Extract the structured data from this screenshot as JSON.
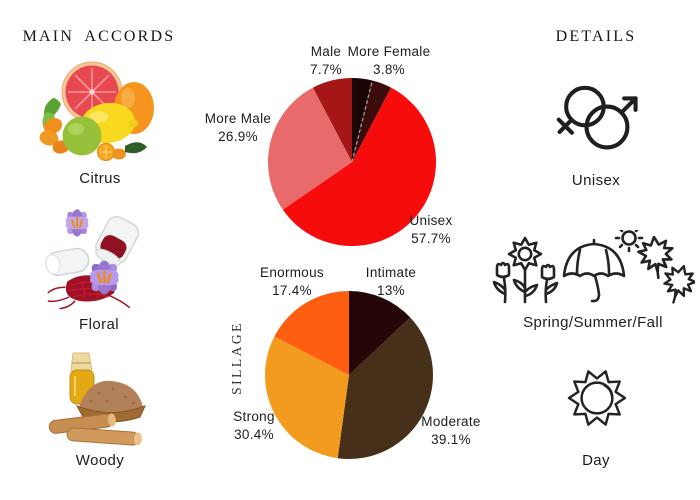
{
  "page": {
    "background": "#ffffff"
  },
  "left": {
    "header": "MAIN ACCORDS",
    "accords": [
      {
        "label": "Citrus",
        "image": "citrus-fruits-image"
      },
      {
        "label": "Floral",
        "image": "saffron-crocus-image"
      },
      {
        "label": "Woody",
        "image": "sandalwood-image"
      }
    ]
  },
  "right": {
    "header": "DETAILS",
    "items": [
      {
        "label": "Unisex",
        "icon": "unisex-gender-icon"
      },
      {
        "label": "Spring/Summer/Fall",
        "icon": "spring-summer-fall-icons"
      },
      {
        "label": "Day",
        "icon": "day-sun-icon"
      }
    ]
  },
  "chart_data": [
    {
      "type": "pie",
      "name": "gender-audience-pie",
      "start": "12-oclock",
      "direction": "clockwise",
      "legend": "none",
      "slices": [
        {
          "label": "",
          "pct": 3.9,
          "pct_text": "",
          "color": "#1c0505",
          "label_visible": false
        },
        {
          "label": "More Female",
          "pct": 3.8,
          "pct_text": "3.8%",
          "color": "#3c0c0c",
          "label_visible": true
        },
        {
          "label": "Unisex",
          "pct": 57.7,
          "pct_text": "57.7%",
          "color": "#f70c0c",
          "label_visible": true
        },
        {
          "label": "More Male",
          "pct": 26.9,
          "pct_text": "26.9%",
          "color": "#e96a6a",
          "label_visible": true
        },
        {
          "label": "Male",
          "pct": 7.7,
          "pct_text": "7.7%",
          "color": "#a51717",
          "label_visible": true
        }
      ],
      "dashed_boundary_slice_index": 1,
      "dashed_boundary_color": "#a0a0a0"
    },
    {
      "type": "pie",
      "name": "sillage-pie",
      "side_label": "SILLAGE",
      "start": "12-oclock",
      "direction": "clockwise",
      "legend": "none",
      "slices": [
        {
          "label": "Intimate",
          "pct": 13,
          "pct_text": "13%",
          "color": "#260707",
          "label_visible": true
        },
        {
          "label": "Moderate",
          "pct": 39.1,
          "pct_text": "39.1%",
          "color": "#47301a",
          "label_visible": true
        },
        {
          "label": "Strong",
          "pct": 30.4,
          "pct_text": "30.4%",
          "color": "#f39b1e",
          "label_visible": true
        },
        {
          "label": "Enormous",
          "pct": 17.4,
          "pct_text": "17.4%",
          "color": "#fd5e0f",
          "label_visible": true
        }
      ]
    }
  ]
}
